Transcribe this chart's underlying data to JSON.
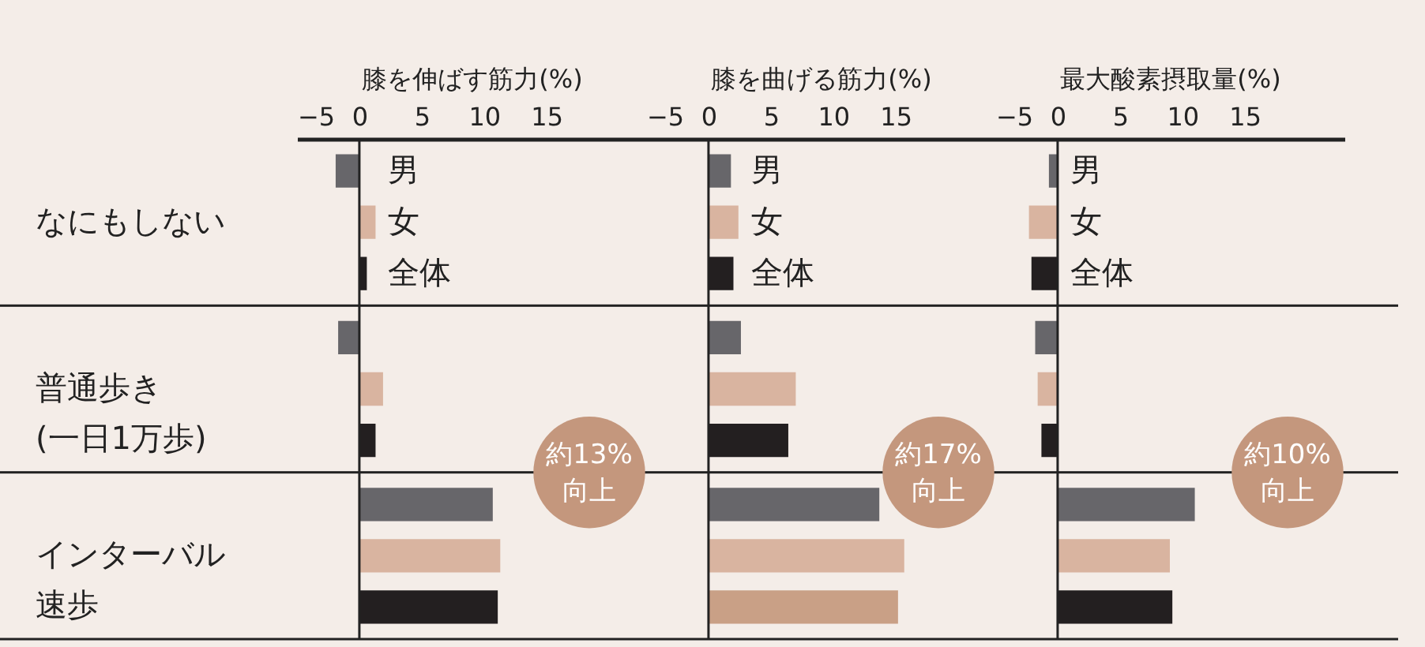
{
  "chart_data": [
    {
      "type": "bar",
      "orientation": "horizontal",
      "xlabel": "膝を伸ばす筋力(%)",
      "categories": [
        "なにもしない",
        "普通歩き(一日1万歩)",
        "インターバル速歩"
      ],
      "xlim": [
        -5,
        23
      ],
      "xticks": [
        -5,
        0,
        5,
        10,
        15
      ],
      "legend": "top left",
      "series": [
        {
          "name": "男",
          "color": "#67666a",
          "values": [
            -1.9,
            -1.7,
            10.7
          ]
        },
        {
          "name": "女",
          "color": "#d9b4a0",
          "values": [
            1.3,
            1.9,
            11.3
          ]
        },
        {
          "name": "全体",
          "color": "#231f20",
          "values": [
            0.6,
            1.3,
            11.1
          ]
        }
      ],
      "ref_lines": [
        {
          "axis": "x",
          "value": 0
        }
      ],
      "annotations": [
        "約13%\n向上"
      ]
    },
    {
      "type": "bar",
      "orientation": "horizontal",
      "xlabel": "膝を曲げる筋力(%)",
      "categories": [
        "なにもしない",
        "普通歩き(一日1万歩)",
        "インターバル速歩"
      ],
      "xlim": [
        -5,
        23
      ],
      "xticks": [
        -5,
        0,
        5,
        10,
        15
      ],
      "legend": "top left",
      "tick_labels": "x",
      "series": [
        {
          "name": "男",
          "color": "#67666a",
          "values": [
            1.8,
            2.6,
            13.7
          ]
        },
        {
          "name": "女",
          "color": "#d9b4a0",
          "values": [
            2.4,
            7.0,
            15.7
          ]
        },
        {
          "name": "全体",
          "color": "#231f20",
          "colors": [
            null,
            null,
            "#c9a086"
          ],
          "values": [
            2.0,
            6.4,
            15.2
          ]
        }
      ],
      "ref_lines": [
        {
          "axis": "x",
          "value": 0
        }
      ],
      "annotations": [
        "約17%\n向上"
      ]
    },
    {
      "type": "bar",
      "orientation": "horizontal",
      "xlabel": "最大酸素摂取量(%)",
      "categories": [
        "なにもしない",
        "普通歩き(一日1万歩)",
        "インターバル速歩"
      ],
      "xlim": [
        -5,
        23
      ],
      "xticks": [
        -5,
        0,
        5,
        10,
        15
      ],
      "legend": "top left",
      "tick_labels": "x",
      "series": [
        {
          "name": "男",
          "color": "#67666a",
          "values": [
            -0.7,
            -1.8,
            11.0
          ]
        },
        {
          "name": "女",
          "color": "#d9b4a0",
          "values": [
            -2.3,
            -1.6,
            9.0
          ]
        },
        {
          "name": "全体",
          "color": "#231f20",
          "values": [
            -2.1,
            -1.3,
            9.2
          ]
        }
      ],
      "ref_lines": [
        {
          "axis": "x",
          "value": 0
        }
      ],
      "annotations": [
        "約10%\n向上"
      ]
    }
  ]
}
